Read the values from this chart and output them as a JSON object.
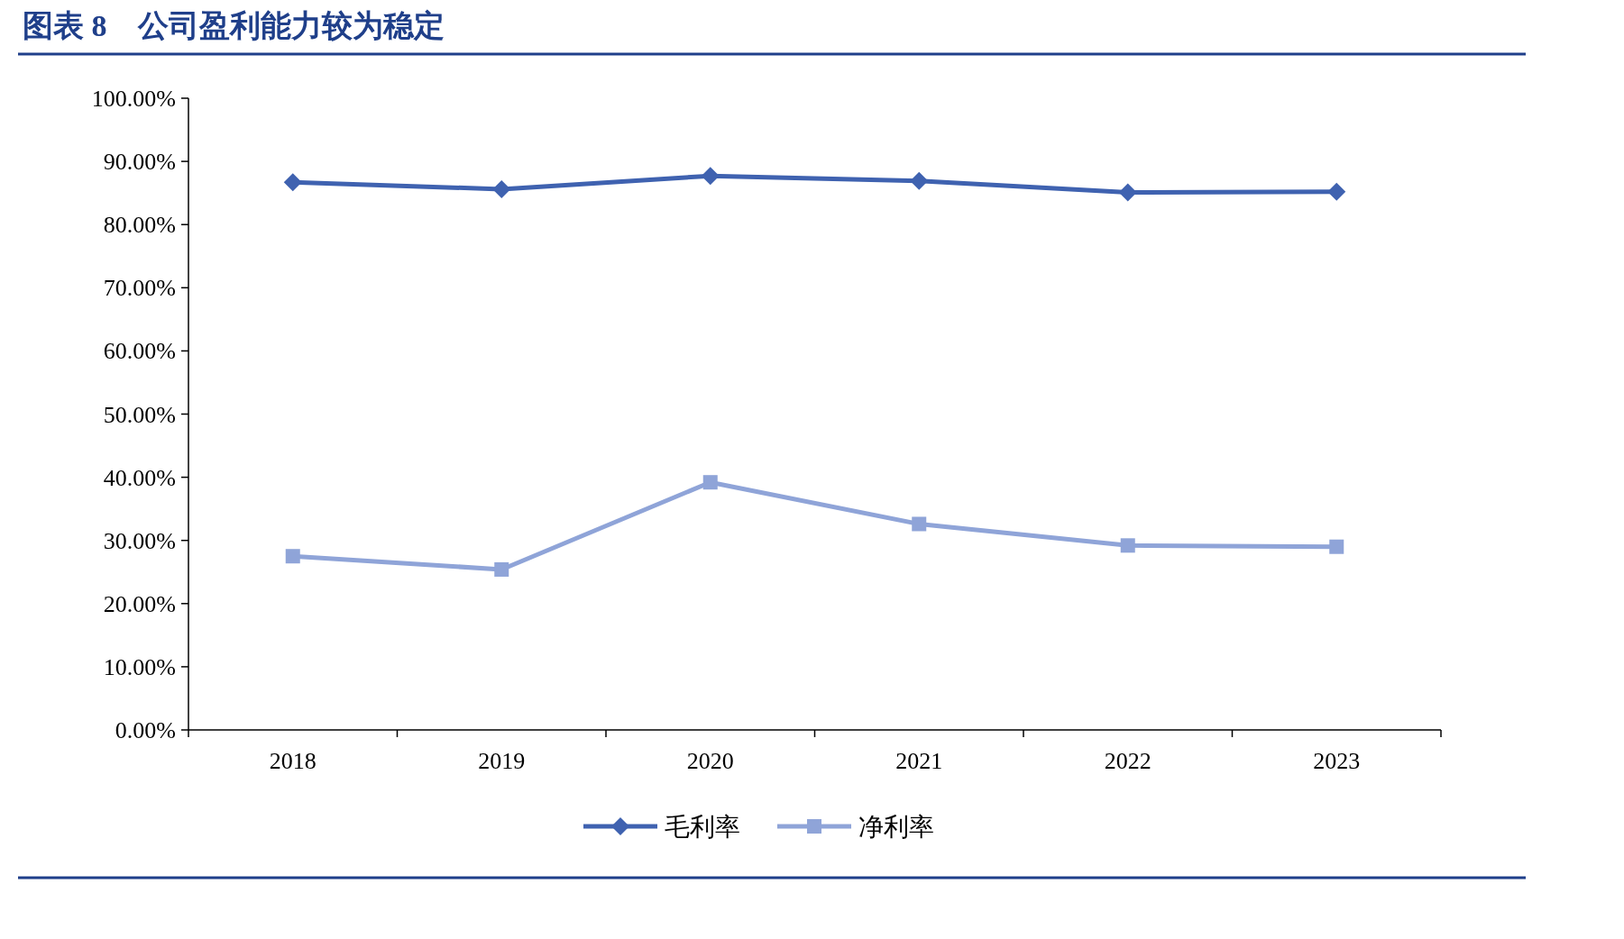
{
  "chart_data": {
    "type": "line",
    "title": "图表 8　公司盈利能力较为稳定",
    "categories": [
      "2018",
      "2019",
      "2020",
      "2021",
      "2022",
      "2023"
    ],
    "series": [
      {
        "name": "毛利率",
        "color": "#3f62b0",
        "marker": "diamond",
        "values": [
          86.7,
          85.6,
          87.7,
          86.9,
          85.1,
          85.2
        ]
      },
      {
        "name": "净利率",
        "color": "#8fa4d8",
        "marker": "square",
        "values": [
          27.5,
          25.4,
          39.2,
          32.6,
          29.2,
          29.0
        ]
      }
    ],
    "ylim": [
      0,
      100
    ],
    "yticks": [
      {
        "value": 0,
        "label": "0.00%"
      },
      {
        "value": 10,
        "label": "10.00%"
      },
      {
        "value": 20,
        "label": "20.00%"
      },
      {
        "value": 30,
        "label": "30.00%"
      },
      {
        "value": 40,
        "label": "40.00%"
      },
      {
        "value": 50,
        "label": "50.00%"
      },
      {
        "value": 60,
        "label": "60.00%"
      },
      {
        "value": 70,
        "label": "70.00%"
      },
      {
        "value": 80,
        "label": "80.00%"
      },
      {
        "value": 90,
        "label": "90.00%"
      },
      {
        "value": 100,
        "label": "100.00%"
      }
    ],
    "grid": false,
    "legend": "bottom",
    "line_style": "solid"
  }
}
